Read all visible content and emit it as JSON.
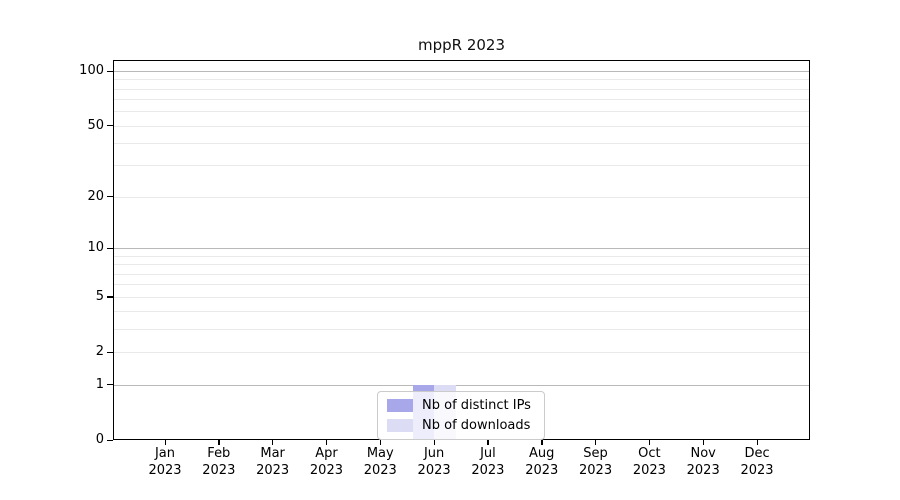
{
  "chart_data": {
    "type": "bar",
    "title": "mppR 2023",
    "x_year": "2023",
    "months": [
      "Jan",
      "Feb",
      "Mar",
      "Apr",
      "May",
      "Jun",
      "Jul",
      "Aug",
      "Sep",
      "Oct",
      "Nov",
      "Dec"
    ],
    "series": [
      {
        "name": "Nb of distinct IPs",
        "color": "#a7a7ea",
        "values": [
          0,
          0,
          0,
          0,
          0,
          1,
          0,
          0,
          0,
          0,
          0,
          0
        ]
      },
      {
        "name": "Nb of downloads",
        "color": "#dcdcf5",
        "values": [
          0,
          0,
          0,
          0,
          0,
          1,
          0,
          0,
          0,
          0,
          0,
          0
        ]
      }
    ],
    "y_scale": "log1p",
    "ylim": [
      0,
      115
    ],
    "y_tick_values": [
      0,
      1,
      2,
      5,
      10,
      20,
      50,
      100
    ],
    "y_major_gridlines": [
      1,
      10,
      100
    ],
    "y_minor_gridlines": [
      2,
      3,
      4,
      5,
      6,
      7,
      8,
      9,
      20,
      30,
      40,
      50,
      60,
      70,
      80,
      90
    ],
    "grid": true,
    "legend_position": "bottom-center",
    "colors": {
      "major_grid": "#b9b9b9",
      "minor_grid": "#e9e9e9",
      "frame": "#000000",
      "background": "#ffffff"
    }
  }
}
